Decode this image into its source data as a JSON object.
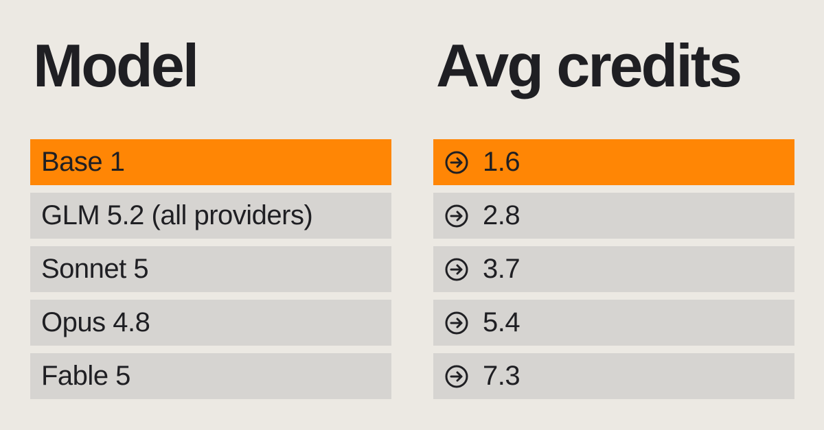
{
  "columns": {
    "model_header": "Model",
    "credits_header": "Avg credits"
  },
  "rows": [
    {
      "model": "Base 1",
      "credits": "1.6",
      "highlight": true
    },
    {
      "model": "GLM 5.2 (all providers)",
      "credits": "2.8",
      "highlight": false
    },
    {
      "model": "Sonnet 5",
      "credits": "3.7",
      "highlight": false
    },
    {
      "model": "Opus 4.8",
      "credits": "5.4",
      "highlight": false
    },
    {
      "model": "Fable 5",
      "credits": "7.3",
      "highlight": false
    }
  ],
  "icons": {
    "value_icon": "arrow-right-circle-icon"
  },
  "colors": {
    "background": "#ece9e3",
    "row": "#d6d4d1",
    "highlight": "#ff8605",
    "text": "#1f1f23"
  }
}
